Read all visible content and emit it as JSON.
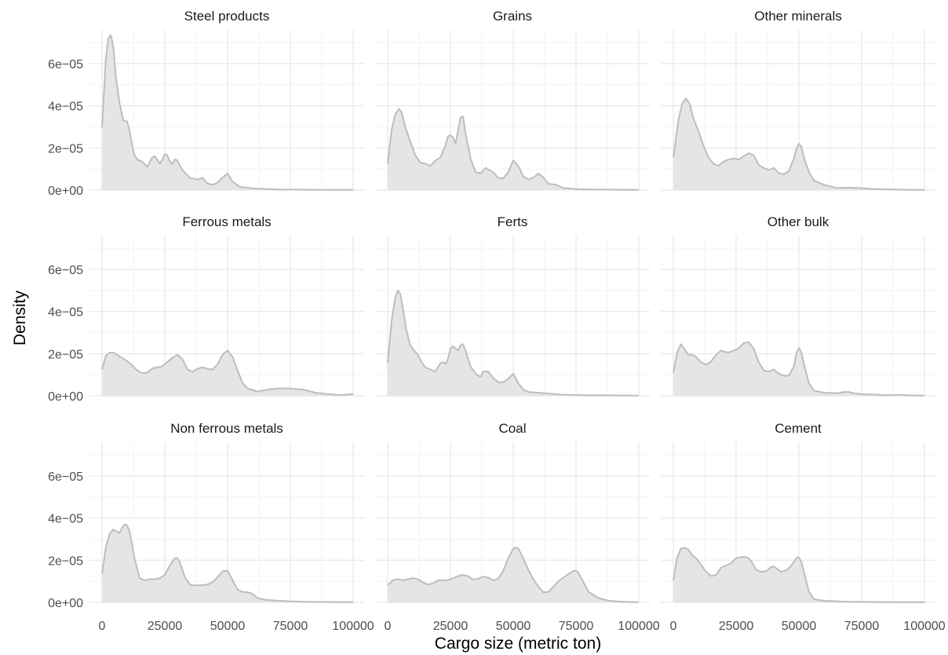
{
  "chart_data": {
    "type": "area",
    "layout": "facet-3x3",
    "xlabel": "Cargo size (metric ton)",
    "ylabel": "Density",
    "xlim": [
      0,
      100000
    ],
    "ylim": [
      0,
      7.6e-05
    ],
    "x_ticks": [
      0,
      25000,
      50000,
      75000,
      100000
    ],
    "x_tick_labels": [
      "0",
      "25000",
      "50000",
      "75000",
      "100000"
    ],
    "y_ticks": [
      0,
      2e-05,
      4e-05,
      6e-05
    ],
    "y_tick_labels": [
      "0e+00",
      "2e−05",
      "4e−05",
      "6e−05"
    ],
    "grid": true,
    "colors": {
      "fill": "#e5e5e5",
      "line": "#bdbdbd",
      "grid": "#ebebeb"
    },
    "panels": [
      {
        "title": "Steel products",
        "x": [
          0,
          1500,
          2500,
          3500,
          4500,
          5500,
          7000,
          8500,
          10000,
          11000,
          12000,
          13000,
          14000,
          16000,
          18000,
          20000,
          21000,
          22000,
          23000,
          24000,
          25000,
          26000,
          27000,
          28000,
          29000,
          30000,
          32000,
          35000,
          38000,
          40000,
          42000,
          44000,
          46000,
          48000,
          50000,
          52000,
          55000,
          60000,
          70000,
          80000,
          90000,
          100000
        ],
        "y": [
          2.95e-05,
          6.2e-05,
          7.2e-05,
          7.35e-05,
          6.8e-05,
          5.4e-05,
          4.1e-05,
          3.3e-05,
          3.25e-05,
          2.8e-05,
          2.1e-05,
          1.65e-05,
          1.45e-05,
          1.35e-05,
          1.1e-05,
          1.55e-05,
          1.6e-05,
          1.45e-05,
          1.25e-05,
          1.45e-05,
          1.7e-05,
          1.65e-05,
          1.35e-05,
          1.25e-05,
          1.45e-05,
          1.4e-05,
          9.5e-06,
          5.8e-06,
          5e-06,
          5.8e-06,
          3.2e-06,
          2.5e-06,
          3.5e-06,
          6e-06,
          7.8e-06,
          4e-06,
          1.5e-06,
          8e-07,
          3e-07,
          2e-07,
          1e-07,
          1e-07
        ]
      },
      {
        "title": "Grains",
        "x": [
          0,
          1500,
          3000,
          4500,
          5500,
          7000,
          9000,
          11000,
          13000,
          15000,
          17000,
          19000,
          21000,
          23000,
          24000,
          25000,
          26000,
          27000,
          28000,
          29000,
          30000,
          31000,
          33000,
          35000,
          37000,
          39000,
          40000,
          42000,
          44000,
          46000,
          48000,
          50000,
          52000,
          54000,
          56000,
          58000,
          60000,
          62000,
          64000,
          67000,
          70000,
          75000,
          80000,
          90000,
          100000
        ],
        "y": [
          1.25e-05,
          2.8e-05,
          3.6e-05,
          3.85e-05,
          3.7e-05,
          3e-05,
          2.3e-05,
          1.65e-05,
          1.3e-05,
          1.25e-05,
          1.15e-05,
          1.4e-05,
          1.55e-05,
          2.1e-05,
          2.55e-05,
          2.6e-05,
          2.5e-05,
          2.2e-05,
          2.8e-05,
          3.45e-05,
          3.5e-05,
          2.7e-05,
          1.5e-05,
          8.5e-06,
          8e-06,
          1.05e-05,
          9.8e-06,
          8.5e-06,
          5.8e-06,
          5.5e-06,
          8.5e-06,
          1.4e-05,
          1.15e-05,
          6.5e-06,
          5e-06,
          6e-06,
          7.8e-06,
          6e-06,
          3e-06,
          2.5e-06,
          1e-06,
          5e-07,
          3e-07,
          2e-07,
          1e-07
        ]
      },
      {
        "title": "Other minerals",
        "x": [
          0,
          2000,
          3500,
          5000,
          6500,
          8000,
          10000,
          12000,
          14000,
          16000,
          18000,
          20000,
          22000,
          24000,
          26000,
          28000,
          30000,
          32000,
          34000,
          36000,
          38000,
          40000,
          42000,
          44000,
          46000,
          48000,
          49000,
          50000,
          51000,
          52000,
          54000,
          56000,
          60000,
          65000,
          70000,
          80000,
          90000,
          100000
        ],
        "y": [
          1.55e-05,
          3.3e-05,
          4.1e-05,
          4.35e-05,
          4.1e-05,
          3.4e-05,
          2.8e-05,
          2.1e-05,
          1.55e-05,
          1.25e-05,
          1.15e-05,
          1.35e-05,
          1.45e-05,
          1.5e-05,
          1.45e-05,
          1.6e-05,
          1.75e-05,
          1.65e-05,
          1.2e-05,
          1.05e-05,
          9.5e-06,
          1.05e-05,
          8e-06,
          7.5e-06,
          9e-06,
          1.5e-05,
          1.95e-05,
          2.2e-05,
          2.05e-05,
          1.55e-05,
          8.5e-06,
          4.5e-06,
          2.5e-06,
          1e-06,
          1.2e-06,
          5e-07,
          2e-07,
          1e-07
        ]
      },
      {
        "title": "Ferrous metals",
        "x": [
          0,
          1500,
          3000,
          4500,
          6000,
          8000,
          10000,
          12000,
          14000,
          16000,
          18000,
          20000,
          22000,
          24000,
          26000,
          28000,
          30000,
          32000,
          34000,
          36000,
          38000,
          40000,
          42000,
          44000,
          46000,
          48000,
          50000,
          52000,
          54000,
          56000,
          58000,
          62000,
          66000,
          70000,
          75000,
          80000,
          85000,
          90000,
          95000,
          100000
        ],
        "y": [
          1.25e-05,
          1.9e-05,
          2.05e-05,
          2.05e-05,
          1.95e-05,
          1.8e-05,
          1.65e-05,
          1.45e-05,
          1.2e-05,
          1.08e-05,
          1.1e-05,
          1.3e-05,
          1.35e-05,
          1.4e-05,
          1.6e-05,
          1.8e-05,
          1.95e-05,
          1.75e-05,
          1.25e-05,
          1.15e-05,
          1.28e-05,
          1.35e-05,
          1.28e-05,
          1.25e-05,
          1.5e-05,
          1.95e-05,
          2.15e-05,
          1.85e-05,
          1.2e-05,
          6e-06,
          3.5e-06,
          2e-06,
          3e-06,
          3.5e-06,
          3.5e-06,
          3e-06,
          1.5e-06,
          8e-07,
          4e-07,
          8e-07
        ]
      },
      {
        "title": "Ferts",
        "x": [
          0,
          1500,
          3000,
          4000,
          5000,
          6000,
          7500,
          9000,
          10500,
          12000,
          13500,
          15000,
          17000,
          19000,
          20000,
          21000,
          22000,
          23000,
          24000,
          25000,
          26000,
          27000,
          28000,
          29000,
          30000,
          31000,
          33000,
          35000,
          37000,
          38000,
          40000,
          42000,
          44000,
          46000,
          48000,
          50000,
          52000,
          54000,
          56000,
          60000,
          65000,
          70000,
          80000,
          90000,
          100000
        ],
        "y": [
          1.55e-05,
          3.5e-05,
          4.65e-05,
          5e-05,
          4.85e-05,
          4.2e-05,
          3.1e-05,
          2.4e-05,
          2.15e-05,
          1.95e-05,
          1.6e-05,
          1.35e-05,
          1.25e-05,
          1.15e-05,
          1.35e-05,
          1.55e-05,
          1.6e-05,
          1.5e-05,
          1.75e-05,
          2.25e-05,
          2.35e-05,
          2.25e-05,
          2.15e-05,
          2.4e-05,
          2.45e-05,
          2.15e-05,
          1.4e-05,
          1.05e-05,
          9e-06,
          1.15e-05,
          1.15e-05,
          8.5e-06,
          6.5e-06,
          6.5e-06,
          8e-06,
          1.05e-05,
          6e-06,
          3e-06,
          1.8e-06,
          1.5e-06,
          1e-06,
          5e-07,
          3e-07,
          2e-07,
          1e-07
        ]
      },
      {
        "title": "Other bulk",
        "x": [
          0,
          1500,
          3000,
          4500,
          6000,
          7500,
          9000,
          11000,
          13000,
          15000,
          17000,
          19000,
          20000,
          22000,
          24000,
          26000,
          28000,
          30000,
          32000,
          34000,
          36000,
          38000,
          40000,
          42000,
          44000,
          46000,
          48000,
          49000,
          50000,
          51000,
          52000,
          54000,
          56000,
          60000,
          65000,
          68000,
          70000,
          72000,
          75000,
          80000,
          85000,
          90000,
          95000,
          100000
        ],
        "y": [
          1.1e-05,
          2.05e-05,
          2.45e-05,
          2.2e-05,
          1.95e-05,
          1.95e-05,
          1.85e-05,
          1.6e-05,
          1.48e-05,
          1.62e-05,
          1.95e-05,
          2.15e-05,
          2.1e-05,
          2.05e-05,
          2.15e-05,
          2.25e-05,
          2.5e-05,
          2.55e-05,
          2.25e-05,
          1.6e-05,
          1.2e-05,
          1.15e-05,
          1.25e-05,
          1.05e-05,
          9.5e-06,
          9.5e-06,
          1.4e-05,
          2e-05,
          2.28e-05,
          2.05e-05,
          1.5e-05,
          6e-06,
          2.5e-06,
          1.5e-06,
          1.2e-06,
          1.8e-06,
          1.8e-06,
          1.2e-06,
          8e-07,
          6e-07,
          3e-07,
          5e-07,
          2e-07,
          1e-07
        ]
      },
      {
        "title": "Non ferrous metals",
        "x": [
          0,
          1500,
          3000,
          4500,
          6000,
          7000,
          8000,
          9000,
          10000,
          11000,
          12000,
          13000,
          15000,
          17000,
          19000,
          21000,
          23000,
          25000,
          27000,
          29000,
          30000,
          31000,
          33000,
          35000,
          37000,
          40000,
          42000,
          44000,
          46000,
          48000,
          50000,
          52000,
          54000,
          56000,
          58000,
          60000,
          62000,
          65000,
          70000,
          75000,
          80000,
          90000,
          100000
        ],
        "y": [
          1.35e-05,
          2.6e-05,
          3.25e-05,
          3.45e-05,
          3.35e-05,
          3.3e-05,
          3.55e-05,
          3.7e-05,
          3.65e-05,
          3.35e-05,
          2.7e-05,
          2.05e-05,
          1.15e-05,
          1.05e-05,
          1.1e-05,
          1.1e-05,
          1.15e-05,
          1.3e-05,
          1.75e-05,
          2.1e-05,
          2.1e-05,
          1.9e-05,
          1.2e-05,
          8.5e-06,
          8e-06,
          8.2e-06,
          8.5e-06,
          9.5e-06,
          1.2e-05,
          1.48e-05,
          1.5e-05,
          1.05e-05,
          6e-06,
          5e-06,
          4.8e-06,
          4e-06,
          2e-06,
          1.2e-06,
          8e-07,
          5e-07,
          3e-07,
          2e-07,
          1e-07
        ]
      },
      {
        "title": "Coal",
        "x": [
          0,
          2000,
          4000,
          6000,
          8000,
          10000,
          12000,
          14000,
          16000,
          18000,
          20000,
          22000,
          24000,
          26000,
          28000,
          30000,
          32000,
          34000,
          36000,
          38000,
          40000,
          42000,
          44000,
          46000,
          48000,
          50000,
          51000,
          52000,
          54000,
          56000,
          58000,
          60000,
          62000,
          64000,
          66000,
          68000,
          70000,
          72000,
          74000,
          75000,
          76000,
          78000,
          80000,
          84000,
          88000,
          92000,
          96000,
          100000
        ],
        "y": [
          8e-06,
          1.05e-05,
          1.1e-05,
          1.05e-05,
          1.1e-05,
          1.15e-05,
          1.1e-05,
          9.5e-06,
          8.5e-06,
          9e-06,
          1.05e-05,
          1.05e-05,
          1.05e-05,
          1.15e-05,
          1.25e-05,
          1.3e-05,
          1.25e-05,
          1.08e-05,
          1.12e-05,
          1.22e-05,
          1.18e-05,
          1.05e-05,
          1.12e-05,
          1.5e-05,
          2.1e-05,
          2.55e-05,
          2.6e-05,
          2.55e-05,
          2.1e-05,
          1.55e-05,
          1.1e-05,
          7.5e-06,
          4.8e-06,
          5e-06,
          7.5e-06,
          1e-05,
          1.18e-05,
          1.35e-05,
          1.5e-05,
          1.5e-05,
          1.4e-05,
          9.5e-06,
          5e-06,
          2e-06,
          8e-07,
          4e-07,
          2e-07,
          1e-07
        ]
      },
      {
        "title": "Cement",
        "x": [
          0,
          1500,
          3000,
          4500,
          6000,
          7500,
          9000,
          11000,
          13000,
          15000,
          17000,
          19000,
          21000,
          23000,
          25000,
          27000,
          29000,
          30000,
          31000,
          33000,
          35000,
          37000,
          39000,
          40000,
          41000,
          43000,
          45000,
          47000,
          49000,
          50000,
          51000,
          52000,
          54000,
          56000,
          60000,
          65000,
          70000,
          80000,
          90000,
          100000
        ],
        "y": [
          1.05e-05,
          2.1e-05,
          2.55e-05,
          2.6e-05,
          2.5e-05,
          2.25e-05,
          2.1e-05,
          1.8e-05,
          1.45e-05,
          1.25e-05,
          1.3e-05,
          1.65e-05,
          1.75e-05,
          1.85e-05,
          2.1e-05,
          2.15e-05,
          2.15e-05,
          2.1e-05,
          1.95e-05,
          1.55e-05,
          1.45e-05,
          1.48e-05,
          1.68e-05,
          1.7e-05,
          1.62e-05,
          1.45e-05,
          1.52e-05,
          1.75e-05,
          2.1e-05,
          2.15e-05,
          1.9e-05,
          1.45e-05,
          5e-06,
          1.5e-06,
          8e-07,
          5e-07,
          3e-07,
          2e-07,
          1e-07,
          1e-07
        ]
      }
    ]
  }
}
